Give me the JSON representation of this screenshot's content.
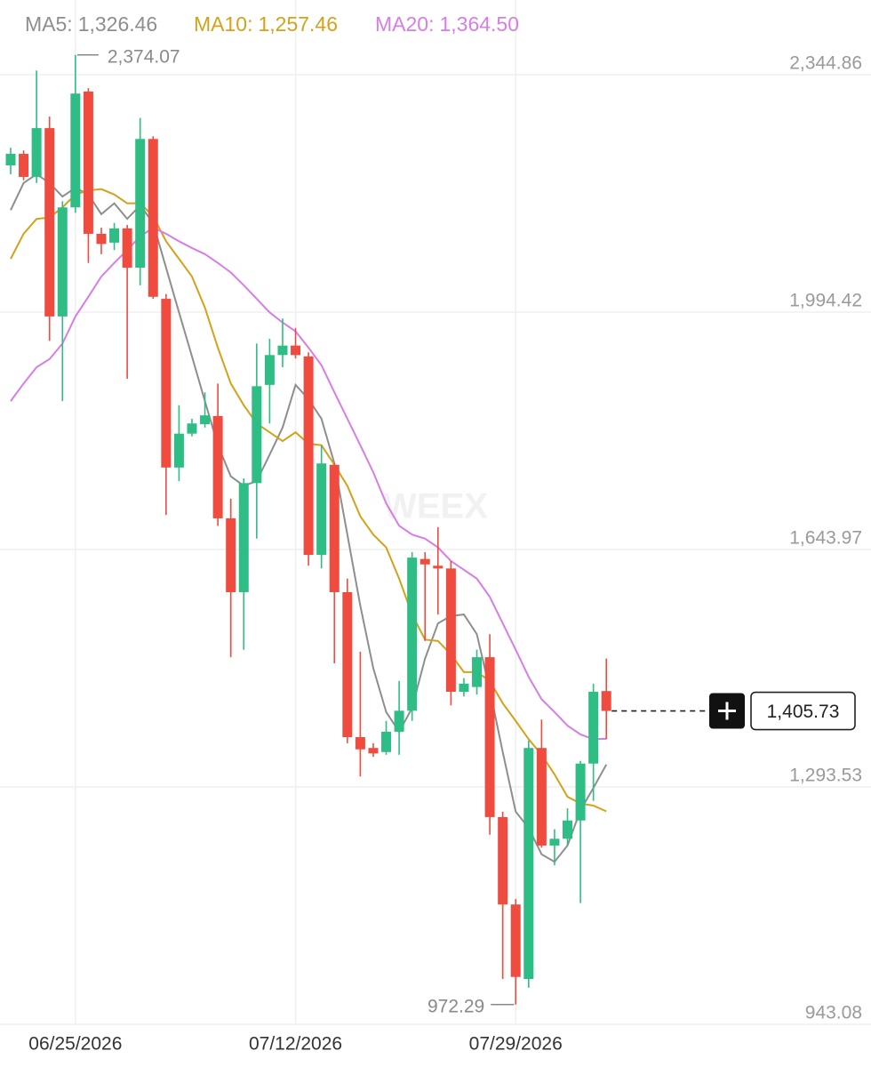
{
  "chart_data": {
    "type": "candlestick",
    "watermark": "WEEX",
    "categories": [
      null,
      null,
      null,
      null,
      null,
      "06/25/2026",
      null,
      null,
      null,
      null,
      null,
      null,
      null,
      null,
      null,
      null,
      null,
      null,
      null,
      null,
      null,
      null,
      "07/12/2026",
      null,
      null,
      null,
      null,
      null,
      null,
      null,
      null,
      null,
      null,
      null,
      null,
      null,
      null,
      null,
      null,
      "07/29/2026",
      null,
      null,
      null,
      null,
      null,
      null,
      null
    ],
    "open": [
      2211,
      2228,
      2194,
      2266,
      1988,
      2149,
      2320,
      2110,
      2097,
      2118,
      2060,
      2250,
      2014,
      1765,
      1815,
      1829,
      1841,
      1690,
      1581,
      1742,
      1887,
      1931,
      1945,
      1929,
      1636,
      1769,
      1581,
      1367,
      1351,
      1345,
      1375,
      1406,
      1630,
      1620,
      1616,
      1434,
      1441,
      1485,
      1249,
      1120,
      1010,
      1351,
      1207,
      1217,
      1244,
      1328,
      1435
    ],
    "high": [
      2237,
      2233,
      2351,
      2283,
      2158,
      2374.07,
      2325,
      2119,
      2126,
      2123,
      2281,
      2254,
      2021,
      1857,
      1837,
      1876,
      1889,
      1719,
      1749,
      1948,
      1955,
      1985,
      1971,
      1935,
      1798,
      1771,
      1601,
      1493,
      1358,
      1391,
      1450,
      1640,
      1640,
      1677,
      1627,
      1454,
      1496,
      1519,
      1257,
      1128,
      1362,
      1393,
      1231,
      1262,
      1332,
      1446,
      1483
    ],
    "low": [
      2198,
      2189,
      2185,
      1952,
      1863,
      2141,
      2067,
      2080,
      2086,
      1896,
      2034,
      2014,
      1695,
      1745,
      1811,
      1824,
      1679,
      1485,
      1496,
      1660,
      1830,
      1913,
      1926,
      1620,
      1616,
      1476,
      1358,
      1309,
      1338,
      1341,
      1341,
      1391,
      1509,
      1548,
      1414,
      1427,
      1430,
      1223,
      1010,
      972.29,
      997,
      1204,
      1178,
      1207,
      1122,
      1273,
      1364
    ],
    "close": [
      2228,
      2194,
      2266,
      1988,
      2149,
      2317,
      2110,
      2095,
      2118,
      2060,
      2250,
      2017,
      1765,
      1815,
      1830,
      1842,
      1690,
      1581,
      1742,
      1885,
      1931,
      1945,
      1931,
      1636,
      1771,
      1581,
      1367,
      1349,
      1343,
      1375,
      1406,
      1632,
      1622,
      1616,
      1434,
      1446,
      1485,
      1249,
      1120,
      1013,
      1351,
      1207,
      1217,
      1244,
      1328,
      1434,
      1405.73
    ],
    "up_color": "#2ebd85",
    "down_color": "#ef4b3f",
    "high_label": "2,374.07",
    "low_label": "972.29",
    "last_label": "1,405.73",
    "series": [
      {
        "name": "MA5:",
        "last_label": "1,326.46",
        "color": "#8e8e8e",
        "values": [
          2145,
          2185,
          2198,
          2185,
          2165,
          2178,
          2168,
          2139,
          2155,
          2132,
          2152,
          2126,
          2060,
          1994,
          1929,
          1863,
          1798,
          1752,
          1738,
          1745,
          1784,
          1824,
          1887,
          1866,
          1837,
          1771,
          1666,
          1561,
          1469,
          1404,
          1375,
          1410,
          1483,
          1535,
          1546,
          1548,
          1519,
          1437,
          1345,
          1257,
          1233,
          1194,
          1183,
          1207,
          1259,
          1292,
          1326.46
        ]
      },
      {
        "name": "MA10:",
        "last_label": "1,257.46",
        "color": "#d4a21a",
        "values": [
          2073,
          2110,
          2132,
          2134,
          2149,
          2168,
          2174,
          2176,
          2168,
          2155,
          2155,
          2136,
          2099,
          2073,
          2047,
          2001,
          1942,
          1889,
          1857,
          1830,
          1817,
          1804,
          1817,
          1800,
          1798,
          1769,
          1738,
          1693,
          1666,
          1647,
          1601,
          1548,
          1511,
          1509,
          1489,
          1463,
          1463,
          1450,
          1417,
          1391,
          1364,
          1341,
          1312,
          1279,
          1269,
          1266,
          1257.46
        ]
      },
      {
        "name": "MA20:",
        "last_label": "1,364.50",
        "color": "#d77ee6",
        "values": [
          1863,
          1889,
          1913,
          1925,
          1948,
          1988,
          2017,
          2047,
          2067,
          2086,
          2106,
          2119,
          2110,
          2099,
          2089,
          2080,
          2067,
          2053,
          2034,
          2014,
          1994,
          1979,
          1966,
          1942,
          1916,
          1876,
          1837,
          1798,
          1758,
          1712,
          1679,
          1666,
          1660,
          1647,
          1627,
          1614,
          1601,
          1574,
          1535,
          1496,
          1456,
          1423,
          1404,
          1384,
          1371,
          1364,
          1364.5
        ]
      }
    ],
    "ylim": [
      943.08,
      2450
    ],
    "yticks": [
      {
        "value": 2344.86,
        "label": "2,344.86"
      },
      {
        "value": 1994.42,
        "label": "1,994.42"
      },
      {
        "value": 1643.97,
        "label": "1,643.97"
      },
      {
        "value": 1293.53,
        "label": "1,293.53"
      },
      {
        "value": 943.08,
        "label": "943.08"
      }
    ],
    "grid": true
  }
}
